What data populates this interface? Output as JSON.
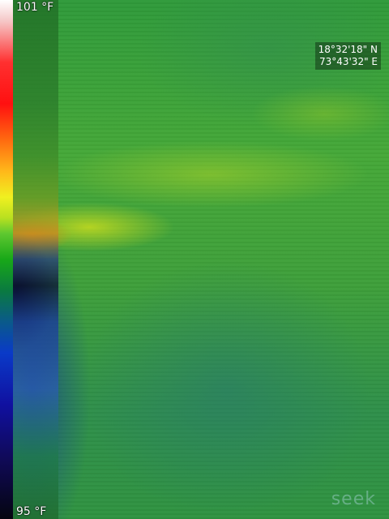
{
  "scale": {
    "max_label": "101 °F",
    "min_label": "95 °F"
  },
  "gps": {
    "latitude": "18°32'18\" N",
    "longitude": "73°43'32\" E"
  },
  "brand": {
    "logo_text": "seek"
  },
  "colors": {
    "dominant": "#3ea23a",
    "hotspot": "#d2a020",
    "cold": "#0a1030"
  },
  "icons": {
    "color_scale": "thermal-palette-bar"
  }
}
